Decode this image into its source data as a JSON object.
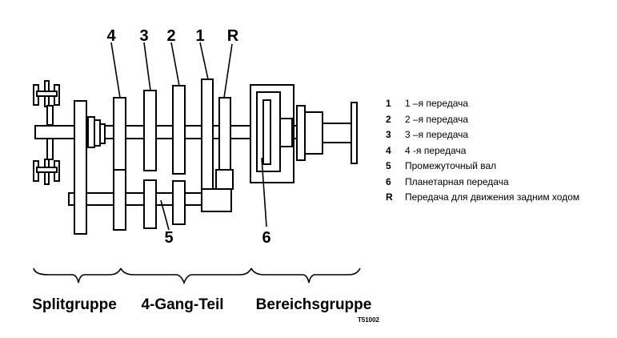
{
  "gear_labels": {
    "g4": "4",
    "g3": "3",
    "g2": "2",
    "g1": "1",
    "gR": "R",
    "shaft": "5",
    "planetary": "6"
  },
  "groups": {
    "split": "Splitgruppe",
    "four_gang": "4-Gang-Teil",
    "range": "Bereichsgruppe"
  },
  "figure_code": "T51002",
  "legend": [
    {
      "key": "1",
      "text": "1 –я передача"
    },
    {
      "key": "2",
      "text": "2 –я передача"
    },
    {
      "key": "3",
      "text": "3 –я передача"
    },
    {
      "key": "4",
      "text": "4  -я передача"
    },
    {
      "key": "5",
      "text": "Промежуточный вал"
    },
    {
      "key": "6",
      "text": "Планетарная передача"
    },
    {
      "key": "R",
      "text": "Передача для движения задним ходом"
    }
  ]
}
